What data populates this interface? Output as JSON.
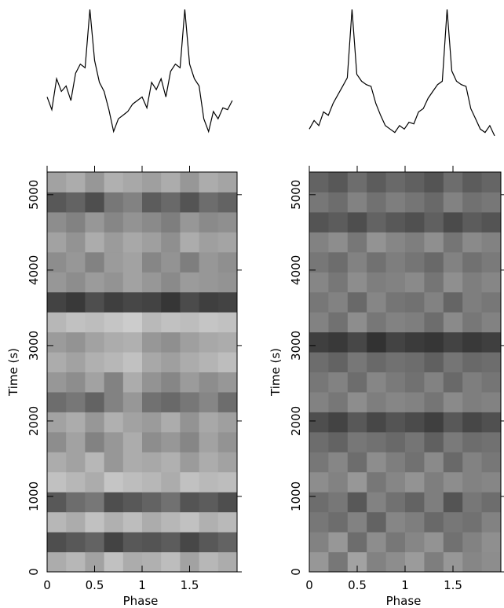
{
  "chart_data": [
    {
      "type": "line",
      "color": "#000000",
      "x": [
        0,
        0.05,
        0.1,
        0.15,
        0.2,
        0.25,
        0.3,
        0.35,
        0.4,
        0.45,
        0.5,
        0.55,
        0.6,
        0.65,
        0.7,
        0.75,
        0.8,
        0.85,
        0.9,
        0.95,
        1,
        1.05,
        1.1,
        1.15,
        1.2,
        1.25,
        1.3,
        1.35,
        1.4,
        1.45,
        1.5,
        1.55,
        1.6,
        1.65,
        1.7,
        1.75,
        1.8,
        1.85,
        1.9,
        1.95
      ],
      "values": [
        52,
        45,
        62,
        55,
        58,
        50,
        65,
        70,
        68,
        100,
        72,
        60,
        55,
        45,
        33,
        40,
        42,
        44,
        48,
        50,
        52,
        46,
        60,
        56,
        62,
        52,
        66,
        70,
        68,
        100,
        70,
        62,
        58,
        40,
        33,
        44,
        40,
        46,
        45,
        50
      ],
      "xlim": [
        0,
        2
      ],
      "ylim": [
        25,
        100
      ]
    },
    {
      "type": "heatmap",
      "x_label": "Phase",
      "y_label": "Time (s)",
      "xlim": [
        0,
        2
      ],
      "ylim": [
        0,
        5300
      ],
      "xticks": [
        0,
        0.5,
        1,
        1.5
      ],
      "yticks": [
        0,
        1000,
        2000,
        3000,
        4000,
        5000
      ],
      "z": [
        [
          0.3,
          0.25,
          0.35,
          0.2,
          0.3,
          0.28,
          0.22,
          0.35,
          0.25,
          0.3
        ],
        [
          0.75,
          0.7,
          0.65,
          0.8,
          0.7,
          0.72,
          0.68,
          0.78,
          0.7,
          0.65
        ],
        [
          0.25,
          0.3,
          0.2,
          0.28,
          0.22,
          0.3,
          0.25,
          0.2,
          0.28,
          0.24
        ],
        [
          0.7,
          0.6,
          0.55,
          0.75,
          0.7,
          0.65,
          0.58,
          0.72,
          0.68,
          0.75
        ],
        [
          0.2,
          0.25,
          0.3,
          0.18,
          0.22,
          0.25,
          0.3,
          0.2,
          0.24,
          0.22
        ],
        [
          0.3,
          0.35,
          0.25,
          0.4,
          0.3,
          0.32,
          0.28,
          0.38,
          0.3,
          0.35
        ],
        [
          0.45,
          0.35,
          0.5,
          0.4,
          0.3,
          0.45,
          0.4,
          0.48,
          0.35,
          0.42
        ],
        [
          0.35,
          0.3,
          0.4,
          0.28,
          0.35,
          0.38,
          0.3,
          0.42,
          0.32,
          0.36
        ],
        [
          0.6,
          0.55,
          0.65,
          0.5,
          0.4,
          0.58,
          0.62,
          0.55,
          0.48,
          0.6
        ],
        [
          0.4,
          0.45,
          0.35,
          0.5,
          0.3,
          0.42,
          0.48,
          0.38,
          0.45,
          0.4
        ],
        [
          0.3,
          0.35,
          0.28,
          0.25,
          0.2,
          0.32,
          0.36,
          0.3,
          0.26,
          0.22
        ],
        [
          0.38,
          0.42,
          0.35,
          0.3,
          0.28,
          0.4,
          0.44,
          0.36,
          0.32,
          0.3
        ],
        [
          0.25,
          0.2,
          0.22,
          0.18,
          0.15,
          0.24,
          0.2,
          0.22,
          0.18,
          0.2
        ],
        [
          0.8,
          0.85,
          0.75,
          0.82,
          0.78,
          0.8,
          0.86,
          0.76,
          0.82,
          0.8
        ],
        [
          0.4,
          0.45,
          0.38,
          0.42,
          0.35,
          0.4,
          0.46,
          0.38,
          0.4,
          0.42
        ],
        [
          0.45,
          0.4,
          0.5,
          0.38,
          0.35,
          0.48,
          0.42,
          0.52,
          0.4,
          0.44
        ],
        [
          0.35,
          0.42,
          0.3,
          0.38,
          0.32,
          0.36,
          0.44,
          0.3,
          0.36,
          0.34
        ],
        [
          0.45,
          0.5,
          0.4,
          0.48,
          0.42,
          0.46,
          0.52,
          0.4,
          0.46,
          0.44
        ],
        [
          0.7,
          0.65,
          0.75,
          0.55,
          0.5,
          0.68,
          0.62,
          0.72,
          0.6,
          0.65
        ],
        [
          0.35,
          0.3,
          0.4,
          0.28,
          0.32,
          0.36,
          0.3,
          0.4,
          0.3,
          0.34
        ]
      ]
    },
    {
      "type": "line",
      "color": "#000000",
      "x": [
        0,
        0.05,
        0.1,
        0.15,
        0.2,
        0.25,
        0.3,
        0.35,
        0.4,
        0.45,
        0.5,
        0.55,
        0.6,
        0.65,
        0.7,
        0.75,
        0.8,
        0.85,
        0.9,
        0.95,
        1,
        1.05,
        1.1,
        1.15,
        1.2,
        1.25,
        1.3,
        1.35,
        1.4,
        1.45,
        1.5,
        1.55,
        1.6,
        1.65,
        1.7,
        1.75,
        1.8,
        1.85,
        1.9,
        1.95
      ],
      "values": [
        30,
        35,
        32,
        40,
        38,
        45,
        50,
        55,
        60,
        100,
        62,
        58,
        56,
        55,
        45,
        38,
        32,
        30,
        28,
        32,
        30,
        34,
        33,
        40,
        42,
        48,
        52,
        56,
        58,
        100,
        64,
        58,
        56,
        55,
        42,
        36,
        30,
        28,
        32,
        26
      ],
      "xlim": [
        0,
        2
      ],
      "ylim": [
        20,
        100
      ]
    },
    {
      "type": "heatmap",
      "x_label": "Phase",
      "y_label": "Time (s)",
      "xlim": [
        0,
        2
      ],
      "ylim": [
        0,
        5300
      ],
      "xticks": [
        0,
        0.5,
        1,
        1.5
      ],
      "yticks": [
        0,
        1000,
        2000,
        3000,
        4000,
        5000
      ],
      "z": [
        [
          0.4,
          0.55,
          0.35,
          0.5,
          0.45,
          0.38,
          0.52,
          0.4,
          0.48,
          0.45
        ],
        [
          0.5,
          0.4,
          0.6,
          0.45,
          0.55,
          0.48,
          0.42,
          0.58,
          0.5,
          0.44
        ],
        [
          0.55,
          0.6,
          0.5,
          0.65,
          0.48,
          0.52,
          0.62,
          0.55,
          0.58,
          0.5
        ],
        [
          0.6,
          0.55,
          0.7,
          0.5,
          0.58,
          0.65,
          0.52,
          0.72,
          0.55,
          0.6
        ],
        [
          0.45,
          0.5,
          0.4,
          0.55,
          0.48,
          0.42,
          0.52,
          0.45,
          0.5,
          0.48
        ],
        [
          0.55,
          0.48,
          0.6,
          0.45,
          0.52,
          0.58,
          0.46,
          0.62,
          0.5,
          0.55
        ],
        [
          0.6,
          0.65,
          0.55,
          0.58,
          0.62,
          0.56,
          0.66,
          0.54,
          0.6,
          0.58
        ],
        [
          0.75,
          0.8,
          0.7,
          0.78,
          0.72,
          0.76,
          0.82,
          0.7,
          0.78,
          0.74
        ],
        [
          0.5,
          0.55,
          0.45,
          0.52,
          0.48,
          0.5,
          0.56,
          0.46,
          0.52,
          0.5
        ],
        [
          0.55,
          0.5,
          0.6,
          0.48,
          0.54,
          0.58,
          0.5,
          0.62,
          0.52,
          0.56
        ],
        [
          0.6,
          0.65,
          0.55,
          0.62,
          0.58,
          0.6,
          0.66,
          0.56,
          0.62,
          0.6
        ],
        [
          0.82,
          0.85,
          0.78,
          0.88,
          0.8,
          0.84,
          0.86,
          0.8,
          0.85,
          0.82
        ],
        [
          0.5,
          0.58,
          0.45,
          0.55,
          0.5,
          0.52,
          0.6,
          0.46,
          0.55,
          0.5
        ],
        [
          0.55,
          0.5,
          0.62,
          0.48,
          0.56,
          0.58,
          0.5,
          0.64,
          0.52,
          0.55
        ],
        [
          0.48,
          0.55,
          0.45,
          0.52,
          0.5,
          0.46,
          0.56,
          0.44,
          0.52,
          0.48
        ],
        [
          0.55,
          0.6,
          0.5,
          0.58,
          0.52,
          0.56,
          0.62,
          0.5,
          0.58,
          0.54
        ],
        [
          0.5,
          0.45,
          0.55,
          0.42,
          0.48,
          0.52,
          0.44,
          0.56,
          0.46,
          0.5
        ],
        [
          0.72,
          0.68,
          0.75,
          0.65,
          0.7,
          0.74,
          0.66,
          0.76,
          0.68,
          0.72
        ],
        [
          0.55,
          0.6,
          0.5,
          0.58,
          0.52,
          0.56,
          0.62,
          0.5,
          0.58,
          0.55
        ],
        [
          0.65,
          0.7,
          0.6,
          0.68,
          0.62,
          0.66,
          0.72,
          0.6,
          0.68,
          0.64
        ]
      ]
    }
  ]
}
